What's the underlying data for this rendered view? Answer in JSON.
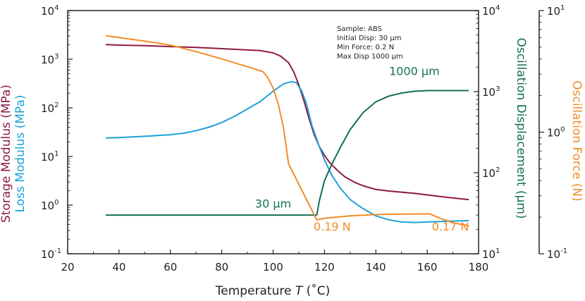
{
  "chart_data": {
    "type": "line",
    "x_axis": {
      "label": "Temperature",
      "label_symbol": "T",
      "label_unit": "(˚C)",
      "range": [
        20,
        180
      ],
      "ticks": [
        "20",
        "40",
        "60",
        "80",
        "100",
        "120",
        "140",
        "160",
        "180"
      ]
    },
    "y_left": {
      "label_storage": "Storage Modulus (MPa)",
      "label_loss": "Loss Modulus (MPa)",
      "scale": "log",
      "range": [
        0.1,
        10000
      ],
      "ticks": [
        {
          "base": "10",
          "exp": "-1"
        },
        {
          "base": "10",
          "exp": "0"
        },
        {
          "base": "10",
          "exp": "1"
        },
        {
          "base": "10",
          "exp": "2"
        },
        {
          "base": "10",
          "exp": "3"
        },
        {
          "base": "10",
          "exp": "4"
        }
      ]
    },
    "y_right1": {
      "label": "Oscillation Displacement (µm)",
      "scale": "log",
      "range": [
        10,
        10000
      ],
      "ticks": [
        {
          "base": "10",
          "exp": "1"
        },
        {
          "base": "10",
          "exp": "2"
        },
        {
          "base": "10",
          "exp": "3"
        },
        {
          "base": "10",
          "exp": "4"
        }
      ]
    },
    "y_right2": {
      "label": "Oscillation Force (N)",
      "scale": "log",
      "range": [
        0.1,
        10
      ],
      "ticks": [
        {
          "base": "10",
          "exp": "-1"
        },
        {
          "base": "10",
          "exp": "0"
        },
        {
          "base": "10",
          "exp": "1"
        }
      ]
    },
    "sample_info": [
      "Sample: ABS",
      "Initial Disp: 30 µm",
      "Min Force: 0.2 N",
      "Max Disp 1000 µm"
    ],
    "annotations": [
      {
        "text": "1000 µm",
        "x": 155,
        "y_axis": "y_right1",
        "y": 1600,
        "color": "displacement"
      },
      {
        "text": "30 µm",
        "x": 100,
        "y_axis": "y_right1",
        "y": 37,
        "color": "displacement"
      },
      {
        "text": "0.19 N",
        "x": 123,
        "y_axis": "y_right2",
        "y": 0.155,
        "color": "force"
      },
      {
        "text": "0.17 N",
        "x": 169,
        "y_axis": "y_right2",
        "y": 0.155,
        "color": "force"
      }
    ],
    "colors": {
      "storage": "#8c1a44",
      "loss": "#1ea0d8",
      "displacement": "#137056",
      "force": "#f28c28",
      "axis": "#222222"
    },
    "series": [
      {
        "name": "Storage Modulus",
        "axis": "y_left",
        "color_key": "storage",
        "x": [
          35,
          40,
          50,
          60,
          70,
          80,
          90,
          95,
          100,
          103,
          106,
          108,
          110,
          112,
          114,
          116,
          118,
          120,
          122,
          125,
          128,
          132,
          135,
          140,
          145,
          150,
          155,
          160,
          165,
          170,
          176
        ],
        "y": [
          2000,
          1950,
          1900,
          1820,
          1750,
          1650,
          1550,
          1500,
          1350,
          1150,
          850,
          550,
          300,
          140,
          60,
          28,
          16,
          10.5,
          7.5,
          5.2,
          3.8,
          2.9,
          2.5,
          2.1,
          1.95,
          1.85,
          1.75,
          1.62,
          1.5,
          1.4,
          1.3
        ]
      },
      {
        "name": "Loss Modulus",
        "axis": "y_left",
        "color_key": "loss",
        "x": [
          35,
          40,
          50,
          60,
          65,
          70,
          75,
          80,
          85,
          90,
          95,
          100,
          104,
          107,
          109,
          111,
          113,
          115,
          118,
          120,
          123,
          126,
          130,
          135,
          140,
          145,
          150,
          155,
          160,
          165,
          170,
          176
        ],
        "y": [
          24,
          24.5,
          26,
          28,
          30,
          34,
          40,
          50,
          67,
          95,
          135,
          220,
          310,
          345,
          330,
          230,
          120,
          45,
          16,
          8.5,
          4,
          2.3,
          1.3,
          0.85,
          0.6,
          0.5,
          0.45,
          0.44,
          0.45,
          0.46,
          0.47,
          0.48
        ]
      },
      {
        "name": "Oscillation Displacement",
        "axis": "y_right1",
        "color_key": "displacement",
        "x": [
          35,
          50,
          70,
          90,
          110,
          116,
          117,
          118,
          120,
          123,
          126,
          130,
          135,
          140,
          145,
          150,
          155,
          160,
          165,
          170,
          176
        ],
        "y": [
          30,
          30,
          30,
          30,
          30,
          30,
          30,
          45,
          80,
          130,
          200,
          340,
          550,
          750,
          880,
          960,
          1010,
          1030,
          1030,
          1030,
          1030
        ]
      },
      {
        "name": "Oscillation Force",
        "axis": "y_right2",
        "color_key": "force",
        "x": [
          35,
          40,
          50,
          60,
          70,
          80,
          90,
          96,
          98,
          100,
          102,
          104,
          106,
          117,
          120,
          130,
          140,
          150,
          161,
          165,
          170,
          176
        ],
        "y": [
          6.2,
          6.0,
          5.6,
          5.2,
          4.6,
          4.0,
          3.45,
          3.15,
          2.8,
          2.3,
          1.7,
          1.1,
          0.55,
          0.19,
          0.196,
          0.205,
          0.21,
          0.212,
          0.213,
          0.196,
          0.18,
          0.17
        ]
      }
    ]
  }
}
